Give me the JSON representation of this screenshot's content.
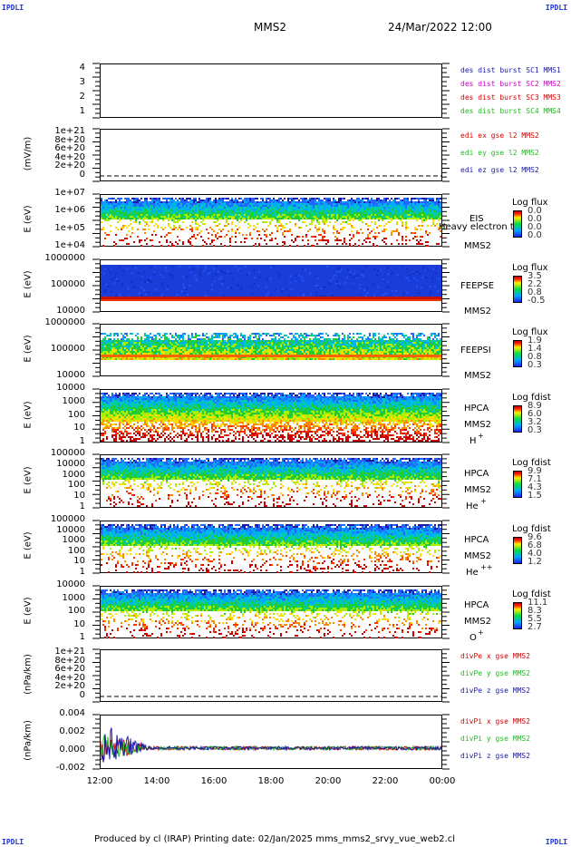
{
  "corners": {
    "tl": "IPDLI",
    "tr": "IPDLI",
    "bl": "IPDLI",
    "br": "IPDLI"
  },
  "header": {
    "spacecraft": "MMS2",
    "datetime": "24/Mar/2022 12:00"
  },
  "footer": {
    "text": "Produced by cl (IRAP)   Printing date: 02/Jan/2025   mms_mms2_srvy_vue_web2.cl"
  },
  "xaxis": {
    "ticks": [
      "12:00",
      "14:00",
      "16:00",
      "18:00",
      "20:00",
      "22:00",
      "00:00"
    ]
  },
  "colors": {
    "blue": "#1a1aa8",
    "magenta": "#cc00cc",
    "red": "#dd0000",
    "green": "#22bb22"
  },
  "chart_data": [
    {
      "type": "line",
      "id": "p1",
      "ylabel": "",
      "yticks": [
        "4",
        "3",
        "2",
        "1"
      ],
      "legend": [
        {
          "name": "des dist burst SC1 MMS1",
          "color": "#1a1aa8"
        },
        {
          "name": "des dist burst SC2 MMS2",
          "color": "#cc00cc"
        },
        {
          "name": "des dist burst SC3 MMS3",
          "color": "#dd0000"
        },
        {
          "name": "des dist burst SC4 MMS4",
          "color": "#22bb22"
        }
      ]
    },
    {
      "type": "line",
      "id": "p2",
      "ylabel": "(mV/m)",
      "yticks": [
        "1e+21",
        "8e+20",
        "6e+20",
        "4e+20",
        "2e+20",
        "0"
      ],
      "legend": [
        {
          "name": "edi ex gse l2 MMS2",
          "color": "#dd0000"
        },
        {
          "name": "edi ey gse l2 MMS2",
          "color": "#22bb22"
        },
        {
          "name": "edi ez gse l2 MMS2",
          "color": "#1a1aa8"
        }
      ]
    },
    {
      "type": "heatmap",
      "id": "p3",
      "ylabel": "E (eV)",
      "yticks": [
        "1e+07",
        "1e+06",
        "1e+05",
        "1e+04"
      ],
      "instrument": "EIS",
      "overlay_text": "Heavy electron to",
      "sc": "MMS2",
      "colorbar": {
        "title": "Log flux",
        "ticks": [
          "0.0",
          "0.0",
          "0.0",
          "0.0"
        ]
      }
    },
    {
      "type": "heatmap",
      "id": "p4",
      "ylabel": "E (eV)",
      "yticks": [
        "1000000",
        "100000",
        "10000"
      ],
      "instrument": "FEEPSE",
      "sc": "MMS2",
      "colorbar": {
        "title": "Log flux",
        "ticks": [
          "3.5",
          "2.2",
          "0.8",
          "-0.5"
        ]
      }
    },
    {
      "type": "heatmap",
      "id": "p5",
      "ylabel": "E (eV)",
      "yticks": [
        "1000000",
        "100000",
        "10000"
      ],
      "instrument": "FEEPSI",
      "sc": "MMS2",
      "colorbar": {
        "title": "Log flux",
        "ticks": [
          "1.9",
          "1.4",
          "0.8",
          "0.3"
        ]
      }
    },
    {
      "type": "heatmap",
      "id": "p6",
      "ylabel": "E (eV)",
      "yticks": [
        "10000",
        "1000",
        "100",
        "10",
        "1"
      ],
      "instrument": "HPCA",
      "sc": "MMS2",
      "species": "H",
      "species_sup": "+",
      "colorbar": {
        "title": "Log fdist",
        "ticks": [
          "8.9",
          "6.0",
          "3.2",
          "0.3"
        ]
      }
    },
    {
      "type": "heatmap",
      "id": "p7",
      "ylabel": "E (eV)",
      "yticks": [
        "100000",
        "10000",
        "1000",
        "100",
        "10",
        "1"
      ],
      "instrument": "HPCA",
      "sc": "MMS2",
      "species": "He",
      "species_sup": "+",
      "colorbar": {
        "title": "Log fdist",
        "ticks": [
          "9.9",
          "7.1",
          "4.3",
          "1.5"
        ]
      }
    },
    {
      "type": "heatmap",
      "id": "p8",
      "ylabel": "E (eV)",
      "yticks": [
        "100000",
        "10000",
        "1000",
        "100",
        "10",
        "1"
      ],
      "instrument": "HPCA",
      "sc": "MMS2",
      "species": "He",
      "species_sup": "++",
      "colorbar": {
        "title": "Log fdist",
        "ticks": [
          "9.6",
          "6.8",
          "4.0",
          "1.2"
        ]
      }
    },
    {
      "type": "heatmap",
      "id": "p9",
      "ylabel": "E (eV)",
      "yticks": [
        "10000",
        "1000",
        "100",
        "10",
        "1"
      ],
      "instrument": "HPCA",
      "sc": "MMS2",
      "species": "O",
      "species_sup": "+",
      "colorbar": {
        "title": "Log fdist",
        "ticks": [
          "11.1",
          "8.3",
          "5.5",
          "2.7"
        ]
      }
    },
    {
      "type": "line",
      "id": "p10",
      "ylabel": "(nPa/km)",
      "yticks": [
        "1e+21",
        "8e+20",
        "6e+20",
        "4e+20",
        "2e+20",
        "0"
      ],
      "legend": [
        {
          "name": "divPe x gse MMS2",
          "color": "#dd0000"
        },
        {
          "name": "divPe y gse MMS2",
          "color": "#22bb22"
        },
        {
          "name": "divPe z gse MMS2",
          "color": "#1a1aa8"
        }
      ]
    },
    {
      "type": "line",
      "id": "p11",
      "ylabel": "(nPa/km)",
      "yticks": [
        "0.004",
        "0.002",
        "0.000",
        "-0.002"
      ],
      "ylim": [
        -0.002,
        0.005
      ],
      "legend": [
        {
          "name": "divPi x gse MMS2",
          "color": "#dd0000"
        },
        {
          "name": "divPi y gse MMS2",
          "color": "#22bb22"
        },
        {
          "name": "divPi z gse MMS2",
          "color": "#1a1aa8"
        }
      ]
    }
  ]
}
